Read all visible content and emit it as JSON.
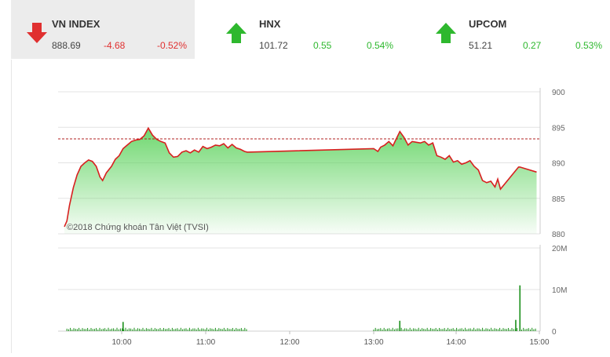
{
  "indices": [
    {
      "name": "VN INDEX",
      "value": "888.69",
      "change": "-4.68",
      "percent": "-0.52%",
      "direction": "down",
      "active": true
    },
    {
      "name": "HNX",
      "value": "101.72",
      "change": "0.55",
      "percent": "0.54%",
      "direction": "up",
      "active": false
    },
    {
      "name": "UPCOM",
      "value": "51.21",
      "change": "0.27",
      "percent": "0.53%",
      "direction": "up",
      "active": false
    }
  ],
  "colors": {
    "up": "#2eb82e",
    "down": "#e03030",
    "line": "#d81f1f",
    "fill": "#5fd35f",
    "volume": "#1a8f1a",
    "reference": "#b22222"
  },
  "chart_data": {
    "type": "line",
    "watermark": "©2018 Chứng khoán Tân Việt (TVSI)",
    "reference_value": 893.37,
    "price": {
      "ylim": [
        880,
        900
      ],
      "yticks": [
        "880",
        "885",
        "890",
        "895",
        "900"
      ],
      "x": [
        "09:15",
        "09:17",
        "09:19",
        "09:22",
        "09:25",
        "09:28",
        "09:31",
        "09:34",
        "09:37",
        "09:40",
        "09:43",
        "09:45",
        "09:48",
        "09:52",
        "09:55",
        "09:58",
        "10:01",
        "10:04",
        "10:07",
        "10:10",
        "10:13",
        "10:16",
        "10:19",
        "10:22",
        "10:25",
        "10:28",
        "10:31",
        "10:34",
        "10:37",
        "10:40",
        "10:43",
        "10:46",
        "10:49",
        "10:52",
        "10:55",
        "10:58",
        "11:01",
        "11:04",
        "11:07",
        "11:10",
        "11:13",
        "11:16",
        "11:19",
        "11:22",
        "11:25",
        "11:28",
        "11:30",
        "13:00",
        "13:03",
        "13:05",
        "13:08",
        "13:11",
        "13:14",
        "13:16",
        "13:19",
        "13:22",
        "13:25",
        "13:28",
        "13:31",
        "13:34",
        "13:37",
        "13:40",
        "13:43",
        "13:46",
        "13:49",
        "13:52",
        "13:55",
        "13:58",
        "14:01",
        "14:04",
        "14:07",
        "14:10",
        "14:13",
        "14:16",
        "14:19",
        "14:22",
        "14:25",
        "14:28",
        "14:30",
        "14:32",
        "14:45",
        "14:46",
        "14:58"
      ],
      "y": [
        881.0,
        881.8,
        884.0,
        886.5,
        888.3,
        889.5,
        890.0,
        890.4,
        890.2,
        889.5,
        888.0,
        887.5,
        888.6,
        889.5,
        890.5,
        891.0,
        892.0,
        892.5,
        893.0,
        893.2,
        893.3,
        893.8,
        894.9,
        893.9,
        893.3,
        893.0,
        892.8,
        891.4,
        890.8,
        890.9,
        891.5,
        891.7,
        891.4,
        891.8,
        891.5,
        892.3,
        892.0,
        892.2,
        892.5,
        892.4,
        892.7,
        892.1,
        892.6,
        892.1,
        891.9,
        891.6,
        891.5,
        892.0,
        891.6,
        892.2,
        892.5,
        893.0,
        892.4,
        893.2,
        894.4,
        893.6,
        892.5,
        893.0,
        892.9,
        892.8,
        893.0,
        892.5,
        892.8,
        891.0,
        890.8,
        890.5,
        891.0,
        890.1,
        890.3,
        889.8,
        890.0,
        890.3,
        889.5,
        889.0,
        887.5,
        887.2,
        887.4,
        886.6,
        887.7,
        886.3,
        889.4,
        889.4,
        888.7
      ]
    },
    "volume": {
      "ylim": [
        0,
        20000000
      ],
      "yticks": [
        "0",
        "10M",
        "20M"
      ],
      "spikes": [
        {
          "x": "10:01",
          "value": 2200000
        },
        {
          "x": "13:19",
          "value": 2500000
        },
        {
          "x": "14:43",
          "value": 2700000
        },
        {
          "x": "14:46",
          "value": 11000000
        }
      ]
    },
    "xticks": [
      "10:00",
      "11:00",
      "12:00",
      "13:00",
      "14:00",
      "15:00"
    ]
  }
}
